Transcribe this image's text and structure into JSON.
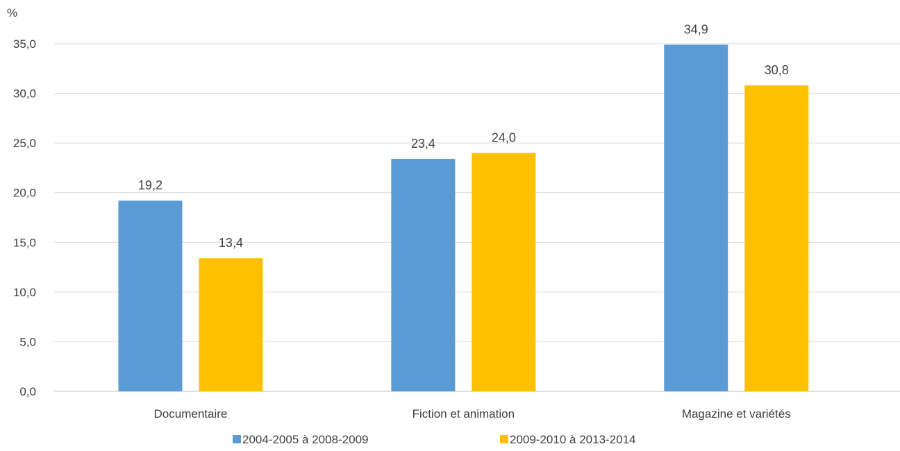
{
  "chart_data": {
    "type": "bar",
    "unit_label": "%",
    "categories": [
      "Documentaire",
      "Fiction et animation",
      "Magazine et variétés"
    ],
    "series": [
      {
        "name": "2004-2005 à 2008-2009",
        "color": "#5b9bd5",
        "values": [
          19.2,
          23.4,
          34.9
        ]
      },
      {
        "name": "2009-2010 à 2013-2014",
        "color": "#ffc000",
        "values": [
          13.4,
          24.0,
          30.8
        ]
      }
    ],
    "ylim": [
      0,
      35
    ],
    "yticks": [
      0,
      5,
      10,
      15,
      20,
      25,
      30,
      35
    ],
    "grid": true,
    "legend_position": "bottom",
    "decimal_separator": ","
  }
}
